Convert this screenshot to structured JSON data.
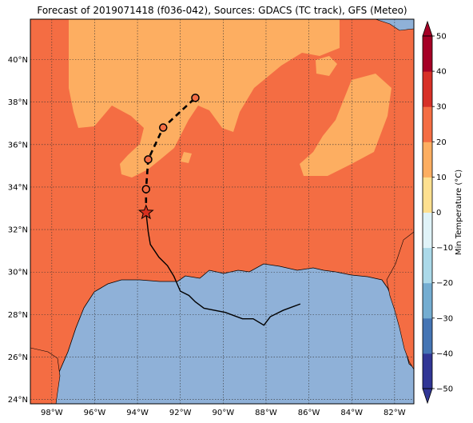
{
  "title": "Forecast of 2019071418 (f036-042), Sources: GDACS (TC track), GFS (Meteo)",
  "map": {
    "lon_range": [
      -99,
      -81.1
    ],
    "lat_range": [
      23.8,
      41.9
    ],
    "x_ticks": [
      "98°W",
      "96°W",
      "94°W",
      "92°W",
      "90°W",
      "88°W",
      "86°W",
      "84°W",
      "82°W"
    ],
    "x_tick_values": [
      -98,
      -96,
      -94,
      -92,
      -90,
      -88,
      -86,
      -84,
      -82
    ],
    "y_ticks": [
      "24°N",
      "26°N",
      "28°N",
      "30°N",
      "32°N",
      "34°N",
      "36°N",
      "38°N",
      "40°N"
    ],
    "y_tick_values": [
      24,
      26,
      28,
      30,
      32,
      34,
      36,
      38,
      40
    ],
    "grid": true,
    "grid_style": "dotted",
    "colors": {
      "land_warm": "#f46d43",
      "land_cool": "#fdae61",
      "water": "#8fb1d8",
      "coast": "#000000"
    }
  },
  "track": {
    "past_track": [
      [
        -86.4,
        28.5
      ],
      [
        -87.2,
        28.2
      ],
      [
        -87.8,
        27.9
      ],
      [
        -88.1,
        27.5
      ],
      [
        -88.6,
        27.8
      ],
      [
        -89.1,
        27.8
      ],
      [
        -89.9,
        28.1
      ],
      [
        -90.9,
        28.3
      ],
      [
        -91.3,
        28.6
      ],
      [
        -91.6,
        28.9
      ],
      [
        -92.0,
        29.1
      ],
      [
        -92.3,
        29.8
      ],
      [
        -92.6,
        30.3
      ],
      [
        -93.0,
        30.7
      ],
      [
        -93.4,
        31.3
      ],
      [
        -93.5,
        31.9
      ],
      [
        -93.6,
        32.8
      ]
    ],
    "current_position": [
      -93.6,
      32.8
    ],
    "forecast_points": [
      [
        -93.6,
        33.9
      ],
      [
        -93.5,
        35.3
      ],
      [
        -92.8,
        36.8
      ],
      [
        -91.3,
        38.2
      ]
    ]
  },
  "colorbar": {
    "label": "Min Temperature (°C)",
    "ticks": [
      "50",
      "40",
      "30",
      "20",
      "10",
      "0",
      "−10",
      "−20",
      "−30",
      "−40",
      "−50"
    ],
    "min": -50,
    "max": 50,
    "colors": [
      "#313695",
      "#4575b4",
      "#74add1",
      "#abd9e9",
      "#e0f3f8",
      "#ffffbf",
      "#fee090",
      "#fdae61",
      "#f46d43",
      "#d73027",
      "#a50026"
    ]
  }
}
